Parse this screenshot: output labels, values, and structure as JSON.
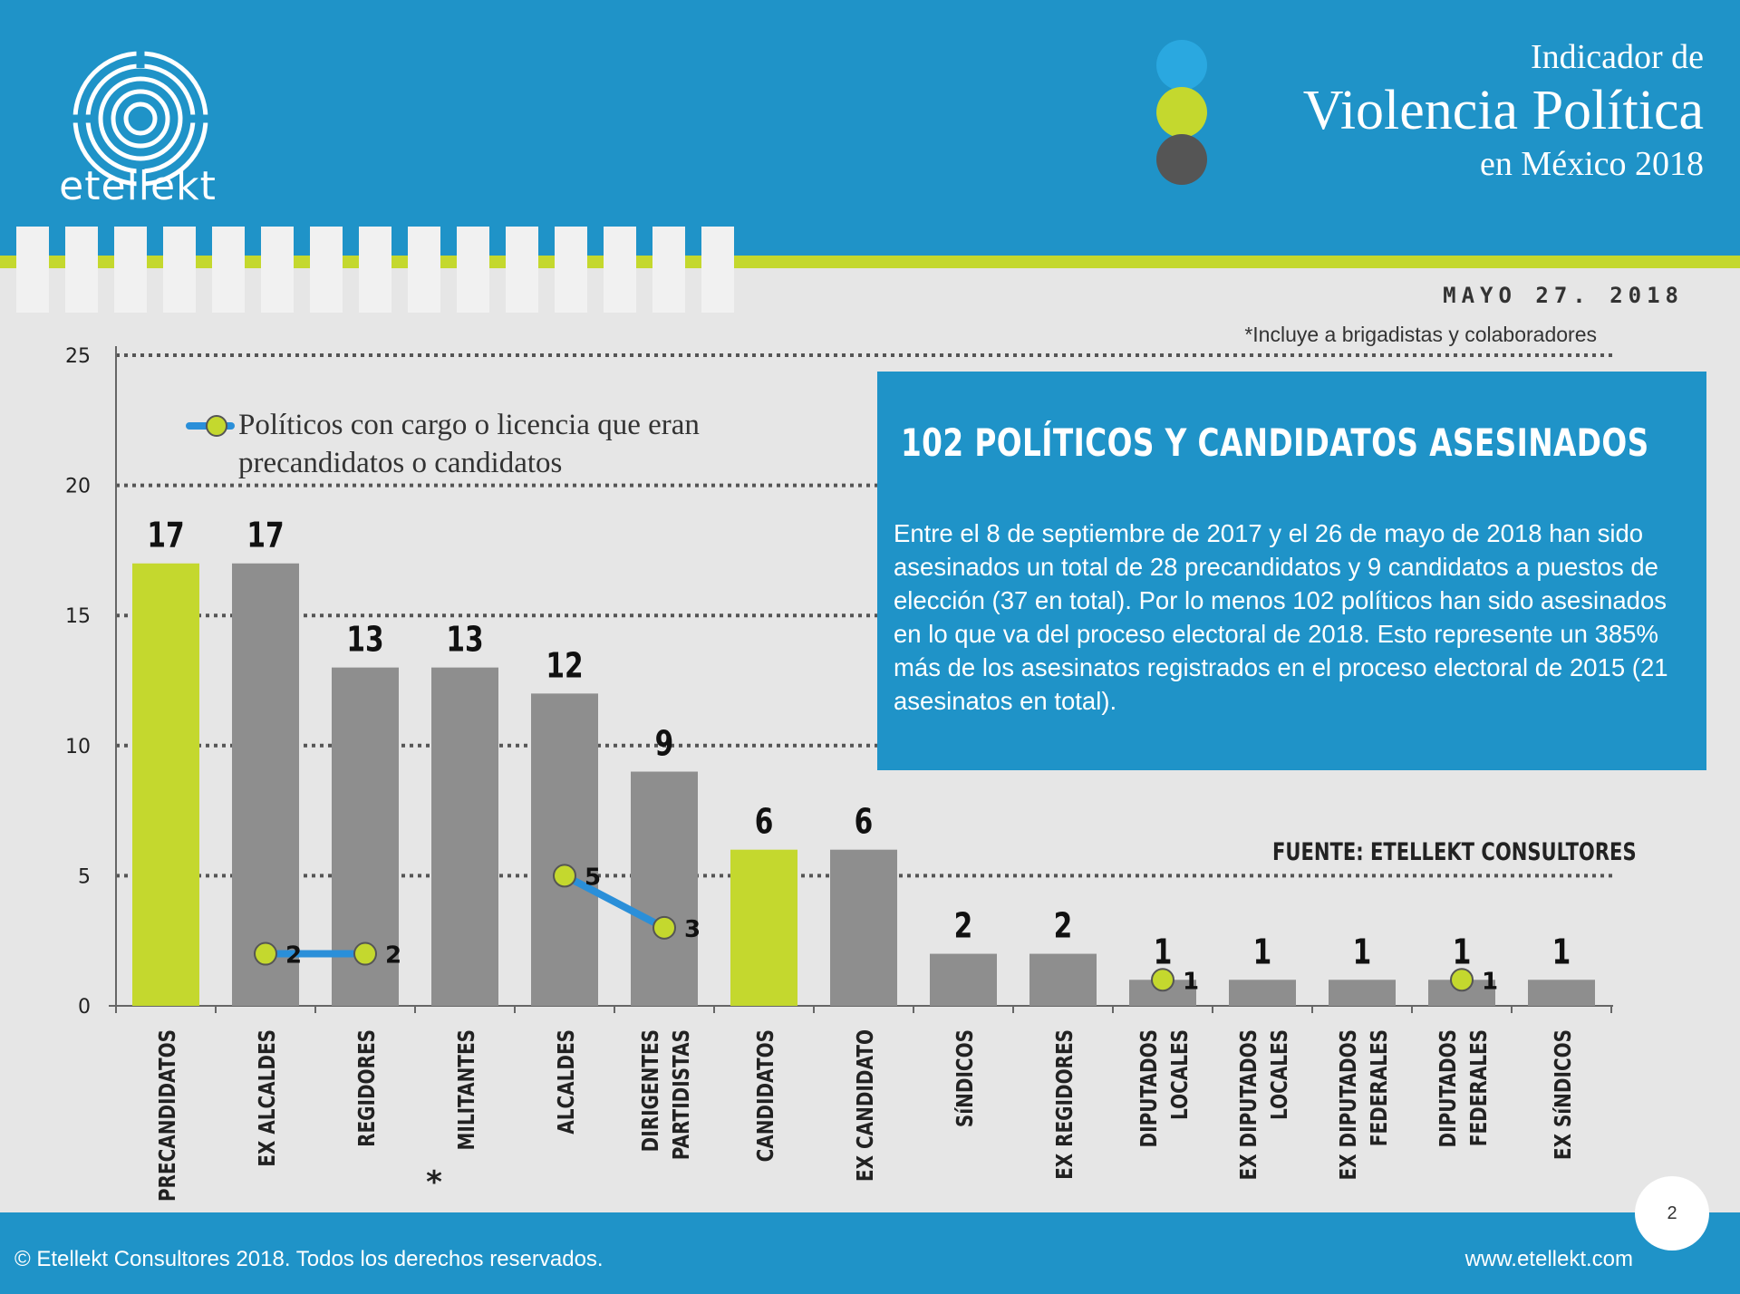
{
  "header": {
    "brand": "etellekt",
    "title_line1": "Indicador de",
    "title_line2": "Violencia Política",
    "title_line3": "en México 2018",
    "date": "MAYO 27. 2018",
    "dot_colors": [
      "#2aa8e0",
      "#c4d82e",
      "#555555"
    ]
  },
  "note": "*Incluye a brigadistas y colaboradores",
  "infobox": {
    "title": "102 POLÍTICOS Y CANDIDATOS ASESINADOS",
    "text": "Entre el 8 de septiembre de 2017 y el 26 de mayo de 2018 han sido asesinados un total de 28 precandidatos y 9 candidatos a puestos de elección (37 en total).  Por lo menos 102 políticos han sido asesinados en lo que va del proceso electoral de 2018. Esto represente un 385% más de los asesinatos registrados en el proceso electoral de 2015 (21 asesinatos en total)."
  },
  "source": "FUENTE: ETELLEKT  CONSULTORES",
  "legend": {
    "label_line1": "Políticos con cargo o licencia que eran",
    "label_line2": "precandidatos o candidatos"
  },
  "chart_data": {
    "type": "bar",
    "ylim": [
      0,
      25
    ],
    "yticks": [
      0,
      5,
      10,
      15,
      20,
      25
    ],
    "grid": true,
    "categories": [
      [
        "PRECANDIDATOS"
      ],
      [
        "EX ALCALDES"
      ],
      [
        "REGIDORES"
      ],
      [
        "MILITANTES"
      ],
      [
        "ALCALDES"
      ],
      [
        "DIRIGENTES",
        "PARTIDISTAS"
      ],
      [
        "CANDIDATOS"
      ],
      [
        "EX CANDIDATO"
      ],
      [
        "SíNDICOS"
      ],
      [
        "EX REGIDORES"
      ],
      [
        "DIPUTADOS",
        "LOCALES"
      ],
      [
        "EX DIPUTADOS",
        "LOCALES"
      ],
      [
        "EX DIPUTADOS",
        "FEDERALES"
      ],
      [
        "DIPUTADOS",
        "FEDERALES"
      ],
      [
        "EX SíNDICOS"
      ]
    ],
    "values": [
      17,
      17,
      13,
      13,
      12,
      9,
      6,
      6,
      2,
      2,
      1,
      1,
      1,
      1,
      1
    ],
    "highlight_indices": [
      0,
      6
    ],
    "highlight_color": "#c4d82e",
    "bar_color": "#8e8e8e",
    "asterisk_category_index": 3,
    "asterisk": "*",
    "overlay_series": {
      "name": "Políticos con cargo o licencia que eran precandidatos o candidatos",
      "line_color": "#2a8fd9",
      "marker_color": "#c4d82e",
      "segments": [
        [
          {
            "category_index": 1,
            "value": 2
          },
          {
            "category_index": 2,
            "value": 2
          }
        ],
        [
          {
            "category_index": 4,
            "value": 5
          },
          {
            "category_index": 5,
            "value": 3
          }
        ],
        [
          {
            "category_index": 10,
            "value": 1
          }
        ],
        [
          {
            "category_index": 13,
            "value": 1
          }
        ]
      ]
    }
  },
  "footer": {
    "copyright": "© Etellekt Consultores 2018. Todos los derechos reservados.",
    "url": "www.etellekt.com",
    "page": "2"
  }
}
